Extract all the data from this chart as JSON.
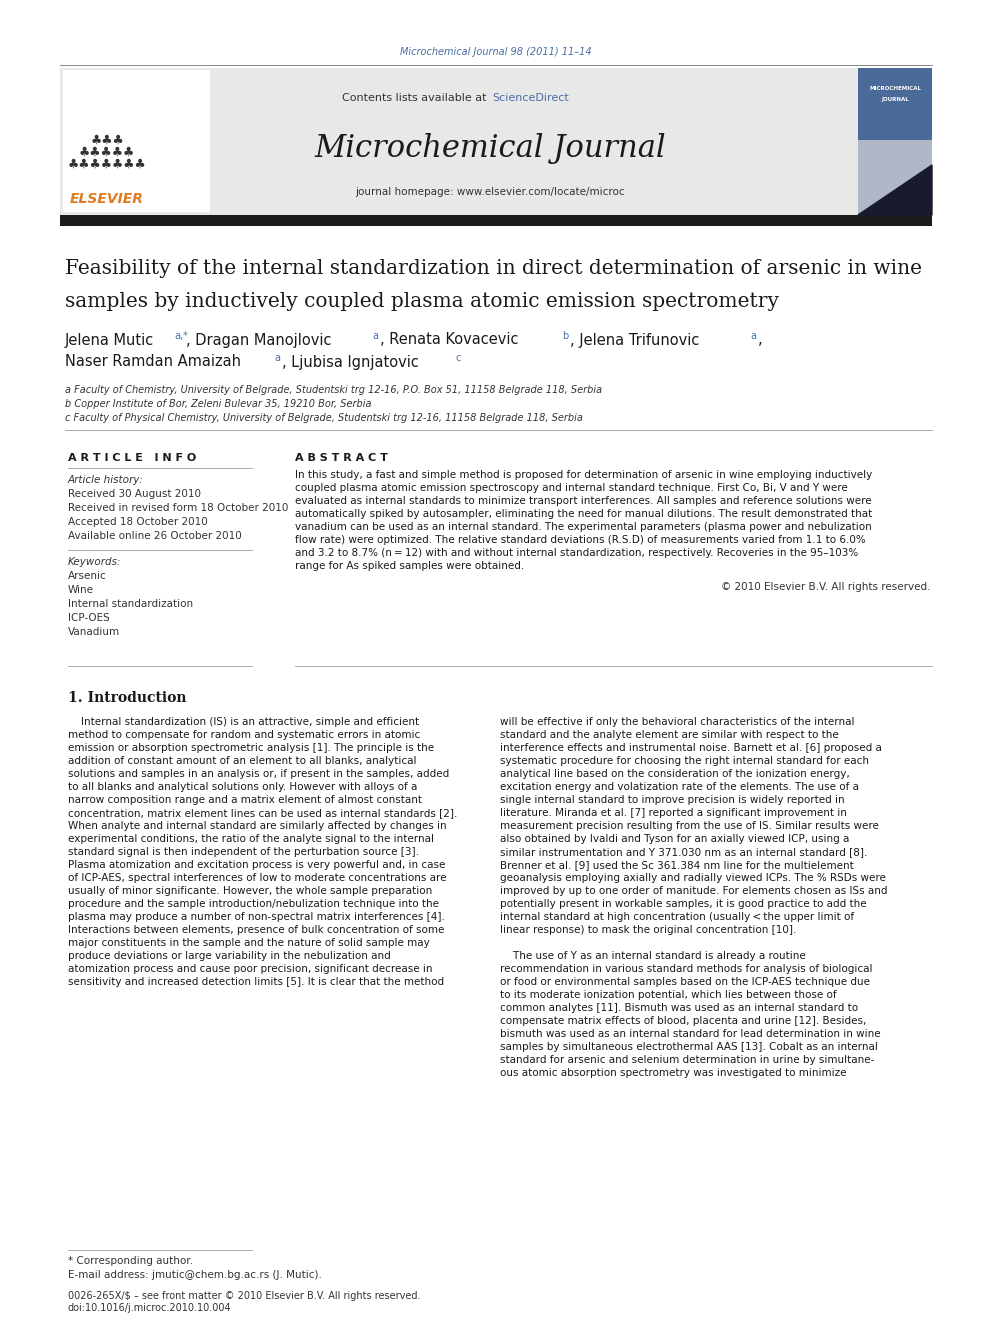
{
  "page_width": 9.92,
  "page_height": 13.23,
  "bg_color": "#ffffff",
  "journal_ref": "Microchemical Journal 98 (2011) 11–14",
  "journal_ref_color": "#4a6fa5",
  "header_bg": "#e8e8e8",
  "contents_text": "Contents lists available at ",
  "sciencedirect_text": "ScienceDirect",
  "sciencedirect_color": "#4a6fa5",
  "journal_name": "Microchemical Journal",
  "journal_homepage": "journal homepage: www.elsevier.com/locate/microc",
  "thick_bar_color": "#1a1a1a",
  "article_title_line1": "Feasibility of the internal standardization in direct determination of arsenic in wine",
  "article_title_line2": "samples by inductively coupled plasma atomic emission spectrometry",
  "affil_a": "a Faculty of Chemistry, University of Belgrade, Studentski trg 12-16, P.O. Box 51, 11158 Belgrade 118, Serbia",
  "affil_b": "b Copper Institute of Bor, Zeleni Bulevar 35, 19210 Bor, Serbia",
  "affil_c": "c Faculty of Physical Chemistry, University of Belgrade, Studentski trg 12-16, 11158 Belgrade 118, Serbia",
  "affil_color": "#333333",
  "section_article_info": "A R T I C L E   I N F O",
  "section_abstract": "A B S T R A C T",
  "article_history_label": "Article history:",
  "received1": "Received 30 August 2010",
  "received2": "Received in revised form 18 October 2010",
  "accepted": "Accepted 18 October 2010",
  "available": "Available online 26 October 2010",
  "keywords_label": "Keywords:",
  "keywords": [
    "Arsenic",
    "Wine",
    "Internal standardization",
    "ICP-OES",
    "Vanadium"
  ],
  "copyright": "© 2010 Elsevier B.V. All rights reserved.",
  "intro_heading": "1. Introduction",
  "footnote_star": "* Corresponding author.",
  "footnote_email": "E-mail address: jmutic@chem.bg.ac.rs (J. Mutic).",
  "footnote_issn": "0026-265X/$ – see front matter © 2010 Elsevier B.V. All rights reserved.",
  "footnote_doi": "doi:10.1016/j.microc.2010.10.004"
}
